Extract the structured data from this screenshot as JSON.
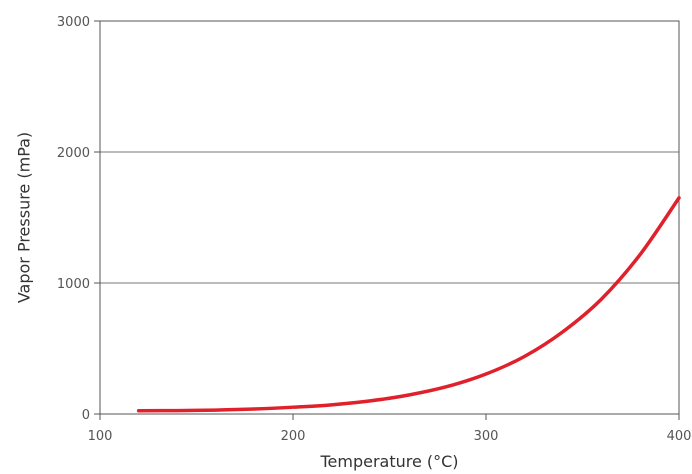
{
  "chart_data": {
    "type": "line",
    "title": "",
    "xlabel": "Temperature (°C)",
    "ylabel": "Vapor Pressure (mPa)",
    "xlim": [
      100,
      400
    ],
    "ylim": [
      0,
      3000
    ],
    "x_ticks": [
      100,
      200,
      300,
      400
    ],
    "y_ticks": [
      0,
      1000,
      2000,
      3000
    ],
    "grid": "horizontal",
    "series": [
      {
        "color": "#e0202a",
        "x": [
          120,
          140,
          160,
          180,
          200,
          220,
          240,
          260,
          280,
          300,
          320,
          340,
          360,
          380,
          400
        ],
        "y": [
          25,
          26,
          30,
          38,
          52,
          70,
          100,
          145,
          210,
          305,
          440,
          630,
          880,
          1220,
          1650
        ]
      }
    ]
  }
}
